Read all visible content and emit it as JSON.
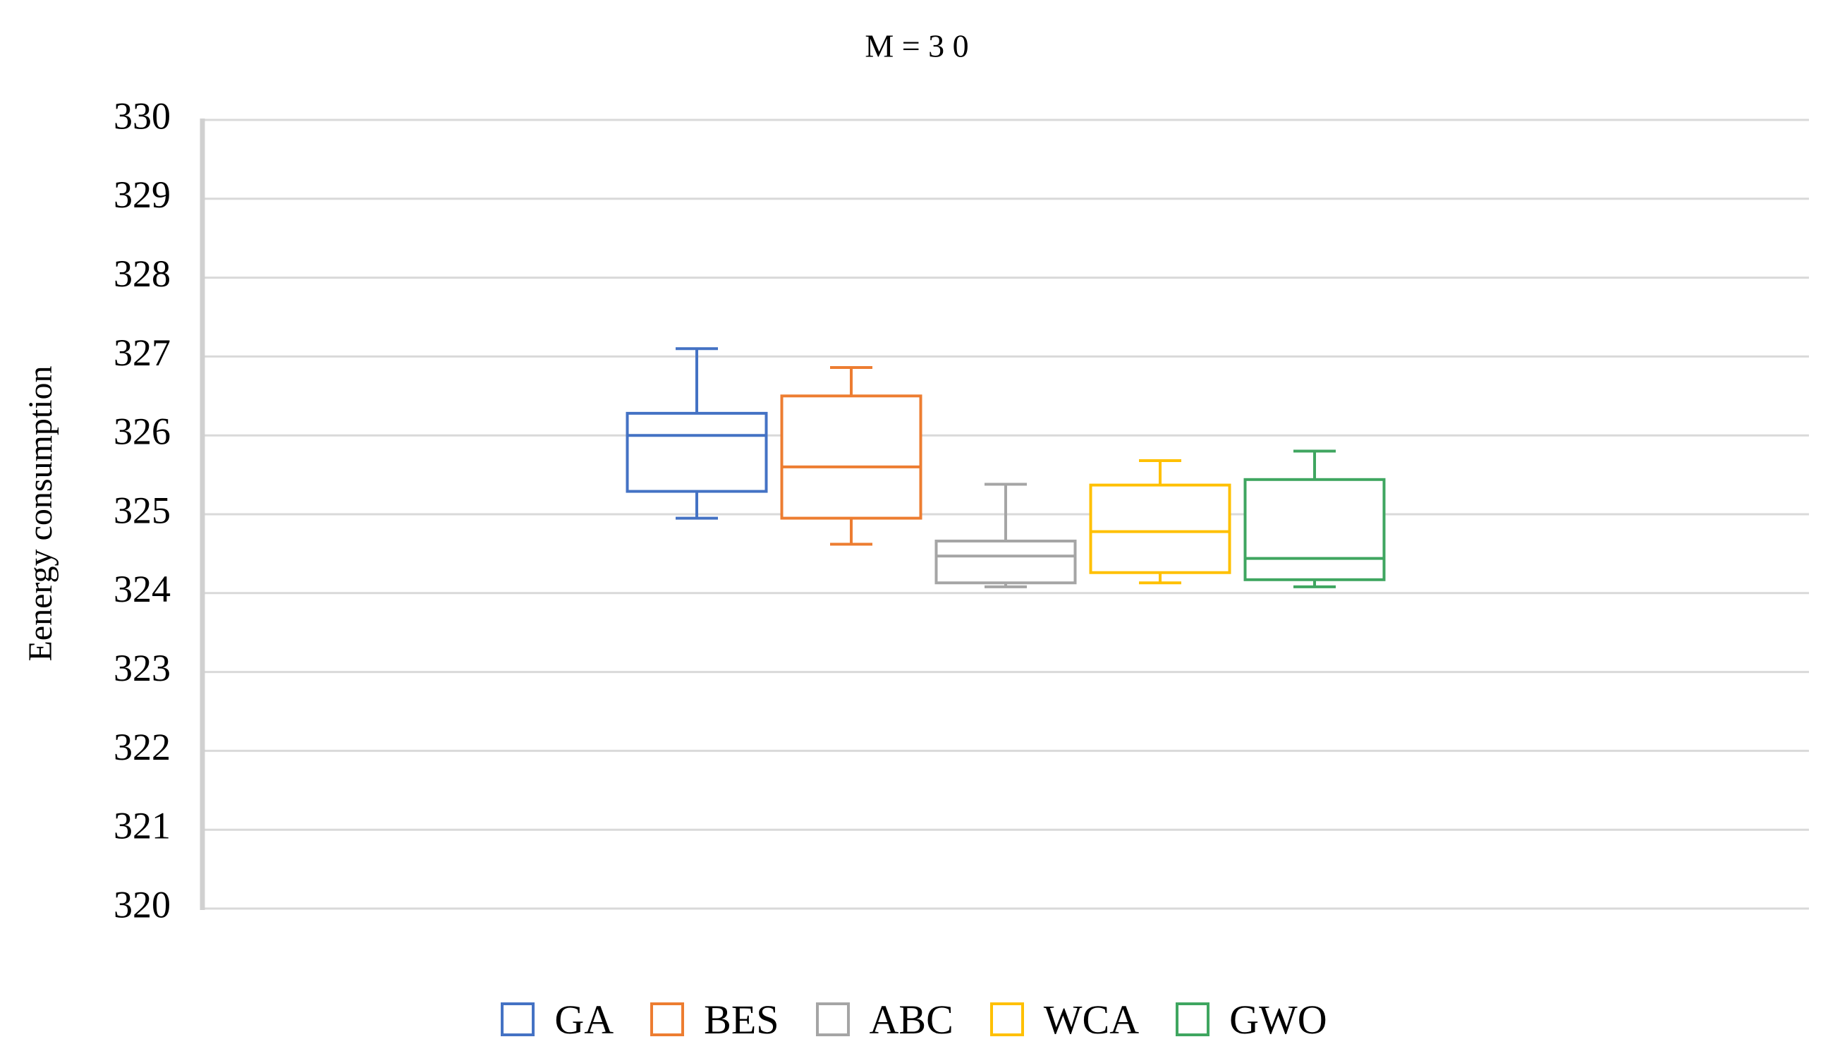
{
  "chart_data": {
    "type": "box",
    "title": "M = 3 0",
    "y_label": "Eenergy consumption",
    "ylim": [
      320,
      330
    ],
    "yticks": [
      320,
      321,
      322,
      323,
      324,
      325,
      326,
      327,
      328,
      329,
      330
    ],
    "grid": true,
    "legend": "bottom",
    "series": [
      {
        "name": "GA",
        "color": "#4472c4",
        "min": 324.95,
        "q1": 325.29,
        "median": 326.0,
        "q3": 326.28,
        "max": 327.1
      },
      {
        "name": "BES",
        "color": "#ed7d31",
        "min": 324.62,
        "q1": 324.95,
        "median": 325.6,
        "q3": 326.5,
        "max": 326.86
      },
      {
        "name": "ABC",
        "color": "#a5a5a5",
        "min": 324.08,
        "q1": 324.13,
        "median": 324.47,
        "q3": 324.66,
        "max": 325.38
      },
      {
        "name": "WCA",
        "color": "#ffc000",
        "min": 324.13,
        "q1": 324.26,
        "median": 324.78,
        "q3": 325.37,
        "max": 325.68
      },
      {
        "name": "GWO",
        "color": "#3fa660",
        "min": 324.08,
        "q1": 324.17,
        "median": 324.44,
        "q3": 325.44,
        "max": 325.8
      }
    ]
  }
}
